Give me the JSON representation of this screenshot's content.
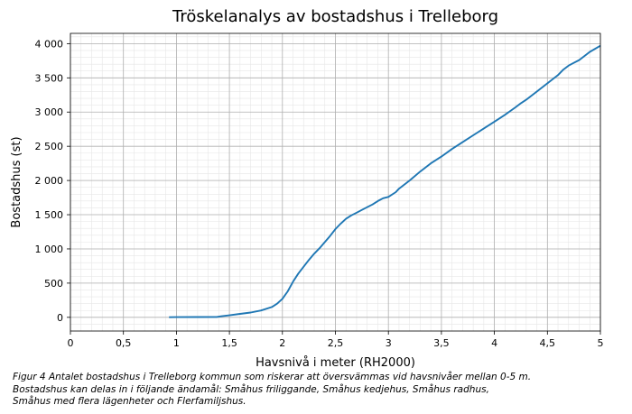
{
  "chart_data": {
    "type": "line",
    "title": "Tröskelanalys av bostadshus i Trelleborg",
    "xlabel": "Havsnivå i meter (RH2000)",
    "ylabel": "Bostadshus (st)",
    "xlim": [
      0,
      5
    ],
    "ylim": [
      -200,
      4150
    ],
    "grid": "major and minor",
    "x_ticks": [
      {
        "value": 0,
        "label": "0"
      },
      {
        "value": 0.5,
        "label": "0,5"
      },
      {
        "value": 1,
        "label": "1"
      },
      {
        "value": 1.5,
        "label": "1,5"
      },
      {
        "value": 2,
        "label": "2"
      },
      {
        "value": 2.5,
        "label": "2,5"
      },
      {
        "value": 3,
        "label": "3"
      },
      {
        "value": 3.5,
        "label": "3,5"
      },
      {
        "value": 4,
        "label": "4"
      },
      {
        "value": 4.5,
        "label": "4,5"
      },
      {
        "value": 5,
        "label": "5"
      }
    ],
    "y_ticks": [
      {
        "value": 0,
        "label": "0"
      },
      {
        "value": 500,
        "label": "500"
      },
      {
        "value": 1000,
        "label": "1 000"
      },
      {
        "value": 1500,
        "label": "1 500"
      },
      {
        "value": 2000,
        "label": "2 000"
      },
      {
        "value": 2500,
        "label": "2 500"
      },
      {
        "value": 3000,
        "label": "3 000"
      },
      {
        "value": 3500,
        "label": "3 500"
      },
      {
        "value": 4000,
        "label": "4 000"
      }
    ],
    "series": [
      {
        "color": "#1f77b4",
        "x": [
          0.93,
          1.0,
          1.2,
          1.38,
          1.42,
          1.5,
          1.6,
          1.7,
          1.8,
          1.9,
          1.95,
          2.0,
          2.05,
          2.1,
          2.15,
          2.2,
          2.25,
          2.3,
          2.35,
          2.4,
          2.45,
          2.5,
          2.55,
          2.6,
          2.65,
          2.7,
          2.75,
          2.8,
          2.85,
          2.9,
          2.95,
          3.0,
          3.05,
          3.07,
          3.1,
          3.2,
          3.3,
          3.4,
          3.5,
          3.6,
          3.7,
          3.8,
          3.9,
          4.0,
          4.1,
          4.2,
          4.25,
          4.3,
          4.4,
          4.5,
          4.6,
          4.65,
          4.7,
          4.8,
          4.9,
          5.0
        ],
        "y": [
          2,
          3,
          4,
          5,
          15,
          30,
          50,
          70,
          100,
          150,
          200,
          270,
          380,
          520,
          640,
          740,
          840,
          930,
          1010,
          1100,
          1190,
          1290,
          1370,
          1440,
          1490,
          1530,
          1570,
          1610,
          1650,
          1700,
          1740,
          1760,
          1810,
          1830,
          1880,
          2000,
          2130,
          2250,
          2350,
          2460,
          2560,
          2660,
          2760,
          2860,
          2960,
          3070,
          3130,
          3180,
          3300,
          3420,
          3540,
          3620,
          3680,
          3760,
          3880,
          3970
        ]
      }
    ]
  },
  "caption": {
    "line1": "Figur 4 Antalet bostadshus i Trelleborg kommun som riskerar att översvämmas vid havsnivåer mellan 0-5 m.",
    "line2": "Bostadshus kan delas in i följande ändamål: Småhus friliggande, Småhus kedjehus, Småhus radhus,",
    "line3": "Småhus med flera lägenheter och Flerfamiljshus."
  }
}
